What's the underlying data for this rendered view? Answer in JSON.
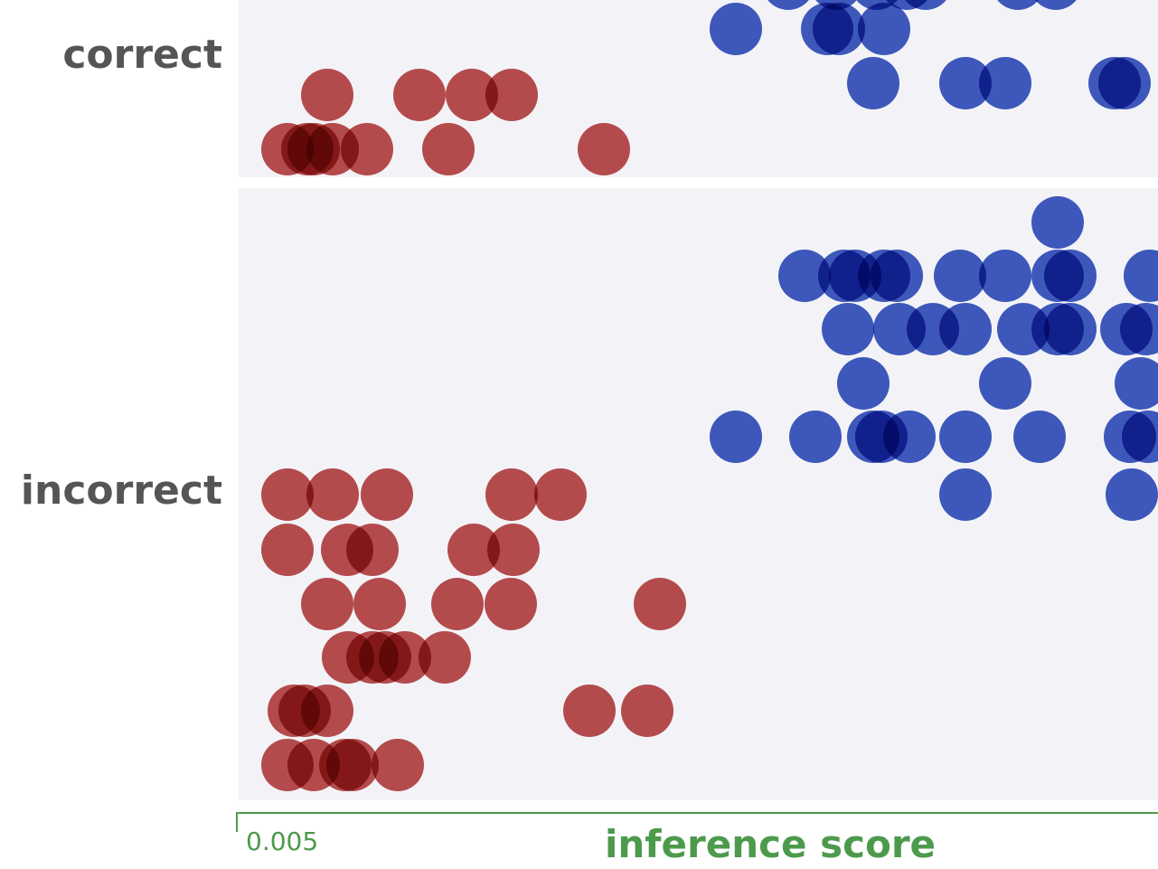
{
  "chart_data": {
    "type": "scatter",
    "subtype": "beeswarm",
    "xlabel": "inference score",
    "x_tick_labels": [
      "0.005"
    ],
    "categories": [
      "correct",
      "incorrect"
    ],
    "colors": {
      "red": "#b03030",
      "blue": "#1f3fb5",
      "panel_bg": "#f3f3f7",
      "axis": "#4c9a4c",
      "label": "#555555"
    },
    "series": [
      {
        "category": "correct",
        "color_key": "red",
        "points": [
          {
            "x": 318,
            "lane": 0
          },
          {
            "x": 340,
            "lane": 0
          },
          {
            "x": 347,
            "lane": 0
          },
          {
            "x": 368,
            "lane": 0
          },
          {
            "x": 406,
            "lane": 0
          },
          {
            "x": 496,
            "lane": 0
          },
          {
            "x": 668,
            "lane": 0
          },
          {
            "x": 362,
            "lane": 1
          },
          {
            "x": 464,
            "lane": 1
          },
          {
            "x": 522,
            "lane": 1
          },
          {
            "x": 566,
            "lane": 1
          }
        ]
      },
      {
        "category": "correct",
        "color_key": "blue",
        "points": [
          {
            "x": 966,
            "lane": 1
          },
          {
            "x": 1068,
            "lane": 1
          },
          {
            "x": 1112,
            "lane": 1
          },
          {
            "x": 1233,
            "lane": 1
          },
          {
            "x": 1244,
            "lane": 1
          },
          {
            "x": 814,
            "lane": 2
          },
          {
            "x": 915,
            "lane": 2
          },
          {
            "x": 928,
            "lane": 2
          },
          {
            "x": 978,
            "lane": 2
          },
          {
            "x": 872,
            "lane": 3
          },
          {
            "x": 925,
            "lane": 3
          },
          {
            "x": 970,
            "lane": 3
          },
          {
            "x": 1003,
            "lane": 3
          },
          {
            "x": 1024,
            "lane": 3
          },
          {
            "x": 1126,
            "lane": 3
          },
          {
            "x": 1168,
            "lane": 3
          }
        ]
      },
      {
        "category": "incorrect",
        "color_key": "red",
        "points": [
          {
            "x": 318,
            "lane": 0
          },
          {
            "x": 347,
            "lane": 0
          },
          {
            "x": 382,
            "lane": 0
          },
          {
            "x": 390,
            "lane": 0
          },
          {
            "x": 440,
            "lane": 0
          },
          {
            "x": 325,
            "lane": 1
          },
          {
            "x": 337,
            "lane": 1
          },
          {
            "x": 362,
            "lane": 1
          },
          {
            "x": 652,
            "lane": 1
          },
          {
            "x": 716,
            "lane": 1
          },
          {
            "x": 385,
            "lane": 2
          },
          {
            "x": 412,
            "lane": 2
          },
          {
            "x": 426,
            "lane": 2
          },
          {
            "x": 448,
            "lane": 2
          },
          {
            "x": 492,
            "lane": 2
          },
          {
            "x": 362,
            "lane": 3
          },
          {
            "x": 420,
            "lane": 3
          },
          {
            "x": 506,
            "lane": 3
          },
          {
            "x": 565,
            "lane": 3
          },
          {
            "x": 730,
            "lane": 3
          },
          {
            "x": 318,
            "lane": 4
          },
          {
            "x": 384,
            "lane": 4
          },
          {
            "x": 412,
            "lane": 4
          },
          {
            "x": 524,
            "lane": 4
          },
          {
            "x": 568,
            "lane": 4
          },
          {
            "x": 318,
            "lane": 5
          },
          {
            "x": 368,
            "lane": 5
          },
          {
            "x": 428,
            "lane": 5
          },
          {
            "x": 566,
            "lane": 5
          },
          {
            "x": 620,
            "lane": 5
          }
        ]
      },
      {
        "category": "incorrect",
        "color_key": "blue",
        "points": [
          {
            "x": 1068,
            "lane": 5
          },
          {
            "x": 1252,
            "lane": 5
          },
          {
            "x": 814,
            "lane": 6
          },
          {
            "x": 902,
            "lane": 6
          },
          {
            "x": 966,
            "lane": 6
          },
          {
            "x": 975,
            "lane": 6
          },
          {
            "x": 1006,
            "lane": 6
          },
          {
            "x": 1068,
            "lane": 6
          },
          {
            "x": 1150,
            "lane": 6
          },
          {
            "x": 1250,
            "lane": 6
          },
          {
            "x": 1270,
            "lane": 6
          },
          {
            "x": 955,
            "lane": 7
          },
          {
            "x": 1112,
            "lane": 7
          },
          {
            "x": 1262,
            "lane": 7
          },
          {
            "x": 938,
            "lane": 8
          },
          {
            "x": 995,
            "lane": 8
          },
          {
            "x": 1032,
            "lane": 8
          },
          {
            "x": 1068,
            "lane": 8
          },
          {
            "x": 1132,
            "lane": 8
          },
          {
            "x": 1170,
            "lane": 8
          },
          {
            "x": 1184,
            "lane": 8
          },
          {
            "x": 1246,
            "lane": 8
          },
          {
            "x": 1268,
            "lane": 8
          },
          {
            "x": 890,
            "lane": 9
          },
          {
            "x": 934,
            "lane": 9
          },
          {
            "x": 946,
            "lane": 9
          },
          {
            "x": 978,
            "lane": 9
          },
          {
            "x": 992,
            "lane": 9
          },
          {
            "x": 1062,
            "lane": 9
          },
          {
            "x": 1112,
            "lane": 9
          },
          {
            "x": 1170,
            "lane": 9
          },
          {
            "x": 1184,
            "lane": 9
          },
          {
            "x": 1272,
            "lane": 9
          },
          {
            "x": 1170,
            "lane": 10
          }
        ]
      }
    ]
  }
}
